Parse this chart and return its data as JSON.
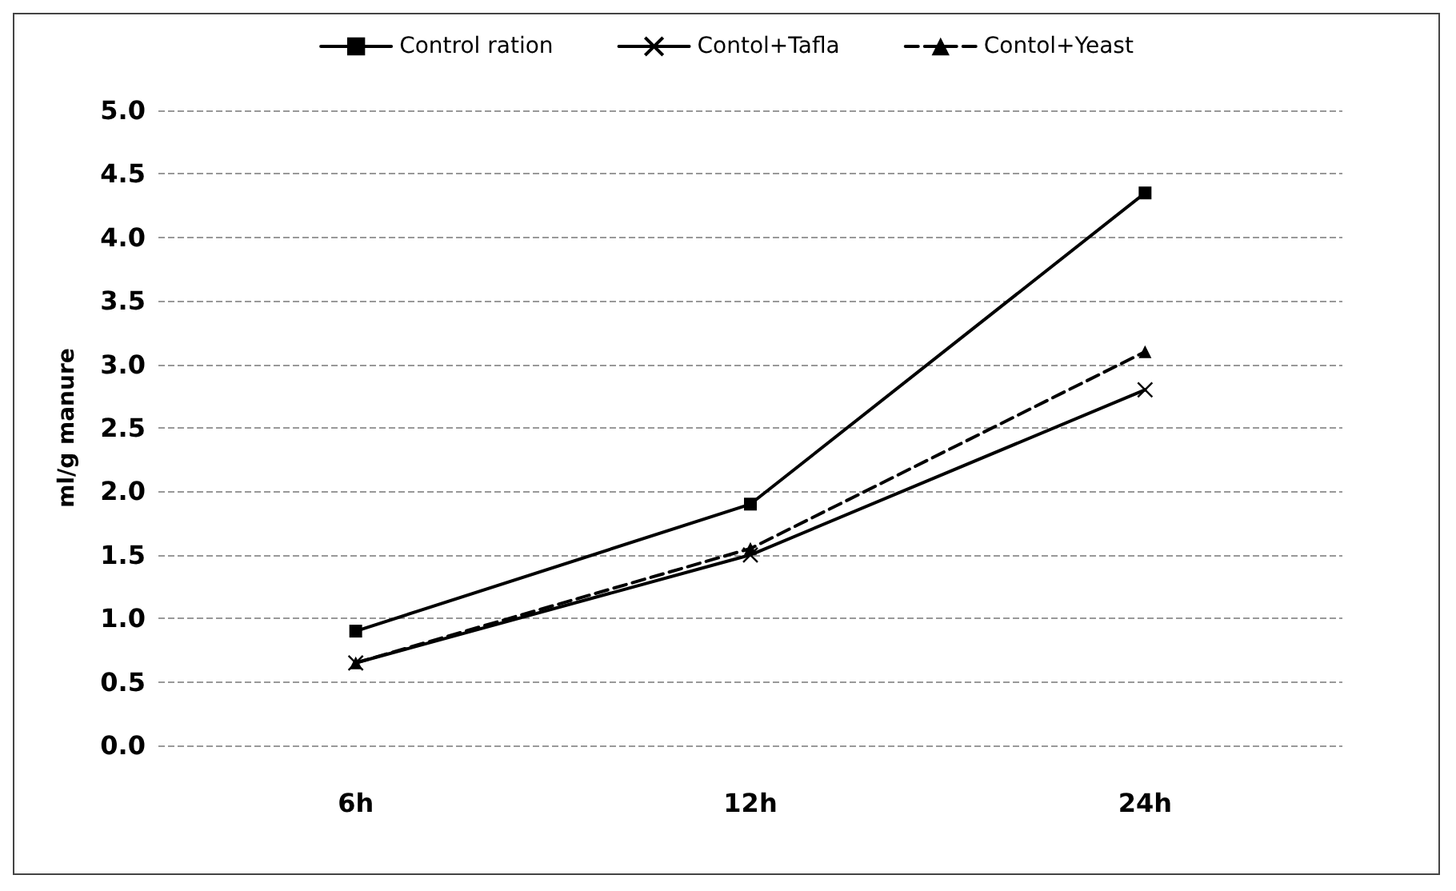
{
  "chart_data": {
    "type": "line",
    "ylabel": "ml/g manure",
    "categories": [
      "6h",
      "12h",
      "24h"
    ],
    "series": [
      {
        "name": "Control ration",
        "color": "#000000",
        "values": [
          0.9,
          1.9,
          4.35
        ],
        "marker": "square",
        "line_style": "solid"
      },
      {
        "name": "Contol+Tafla",
        "color": "#000000",
        "values": [
          0.65,
          1.5,
          2.8
        ],
        "marker": "cross",
        "line_style": "solid"
      },
      {
        "name": "Contol+Yeast",
        "color": "#000000",
        "values": [
          0.65,
          1.55,
          3.1
        ],
        "marker": "triangle",
        "line_style": "dashed"
      }
    ],
    "ylim": [
      0,
      5
    ],
    "yticks": [
      {
        "value": 0,
        "label": "0.0"
      },
      0.5,
      {
        "value": 1,
        "label": "1.0"
      },
      1.5,
      {
        "value": 2,
        "label": "2.0"
      },
      2.5,
      {
        "value": 3,
        "label": "3.0"
      },
      3.5,
      {
        "value": 4,
        "label": "4.0"
      },
      4.5,
      {
        "value": 5,
        "label": "5.0"
      }
    ],
    "grid": "y",
    "legend": "top"
  }
}
